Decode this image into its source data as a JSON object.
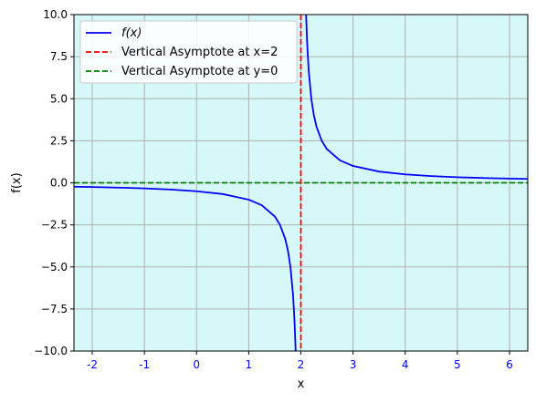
{
  "chart_data": {
    "type": "line",
    "title": "",
    "xlabel": "x",
    "ylabel": "f(x)",
    "xlim": [
      -2.35,
      6.35
    ],
    "ylim": [
      -10,
      10
    ],
    "x_ticks": [
      {
        "value": -2,
        "label": "-2"
      },
      {
        "value": -1,
        "label": "-1"
      },
      {
        "value": 0,
        "label": "0"
      },
      {
        "value": 1,
        "label": "1"
      },
      {
        "value": 2,
        "label": "2"
      },
      {
        "value": 3,
        "label": "3"
      },
      {
        "value": 4,
        "label": "4"
      },
      {
        "value": 5,
        "label": "5"
      },
      {
        "value": 6,
        "label": "6"
      }
    ],
    "y_ticks": [
      {
        "value": 10,
        "label": "10.0"
      },
      {
        "value": 7.5,
        "label": "7.5"
      },
      {
        "value": 5,
        "label": "5.0"
      },
      {
        "value": 2.5,
        "label": "2.5"
      },
      {
        "value": 0,
        "label": "0.0"
      },
      {
        "value": -2.5,
        "label": "−2.5"
      },
      {
        "value": -5,
        "label": "−5.0"
      },
      {
        "value": -7.5,
        "label": "−7.5"
      },
      {
        "value": -10,
        "label": "−10.0"
      }
    ],
    "grid": true,
    "legend_position": "top-left",
    "background_color": "#d7f8f8",
    "x_tick_label_color": "#0000ff",
    "series": [
      {
        "name": "f(x)",
        "kind": "solid",
        "color": "#0000ff",
        "segments": [
          {
            "x": [
              -2.35,
              -2.0,
              -1.5,
              -1.0,
              -0.5,
              0.0,
              0.5,
              1.0,
              1.25,
              1.5,
              1.6,
              1.7,
              1.75,
              1.8,
              1.85,
              1.88,
              1.9
            ],
            "y": [
              -0.23,
              -0.25,
              -0.286,
              -0.333,
              -0.4,
              -0.5,
              -0.667,
              -1.0,
              -1.333,
              -2.0,
              -2.5,
              -3.333,
              -4.0,
              -5.0,
              -6.667,
              -8.333,
              -10.0
            ]
          },
          {
            "x": [
              2.1,
              2.12,
              2.15,
              2.2,
              2.25,
              2.3,
              2.4,
              2.5,
              2.75,
              3.0,
              3.5,
              4.0,
              4.5,
              5.0,
              5.5,
              6.0,
              6.35
            ],
            "y": [
              10.0,
              8.333,
              6.667,
              5.0,
              4.0,
              3.333,
              2.5,
              2.0,
              1.333,
              1.0,
              0.667,
              0.5,
              0.4,
              0.333,
              0.286,
              0.25,
              0.23
            ]
          }
        ]
      },
      {
        "name": "Vertical Asymptote at x=2",
        "kind": "vertical",
        "value": 2,
        "color": "#ff0000",
        "dash": "dashed"
      },
      {
        "name": "Vertical Asymptote at y=0",
        "kind": "horizontal",
        "value": 0,
        "color": "#008000",
        "dash": "dashed"
      }
    ]
  }
}
